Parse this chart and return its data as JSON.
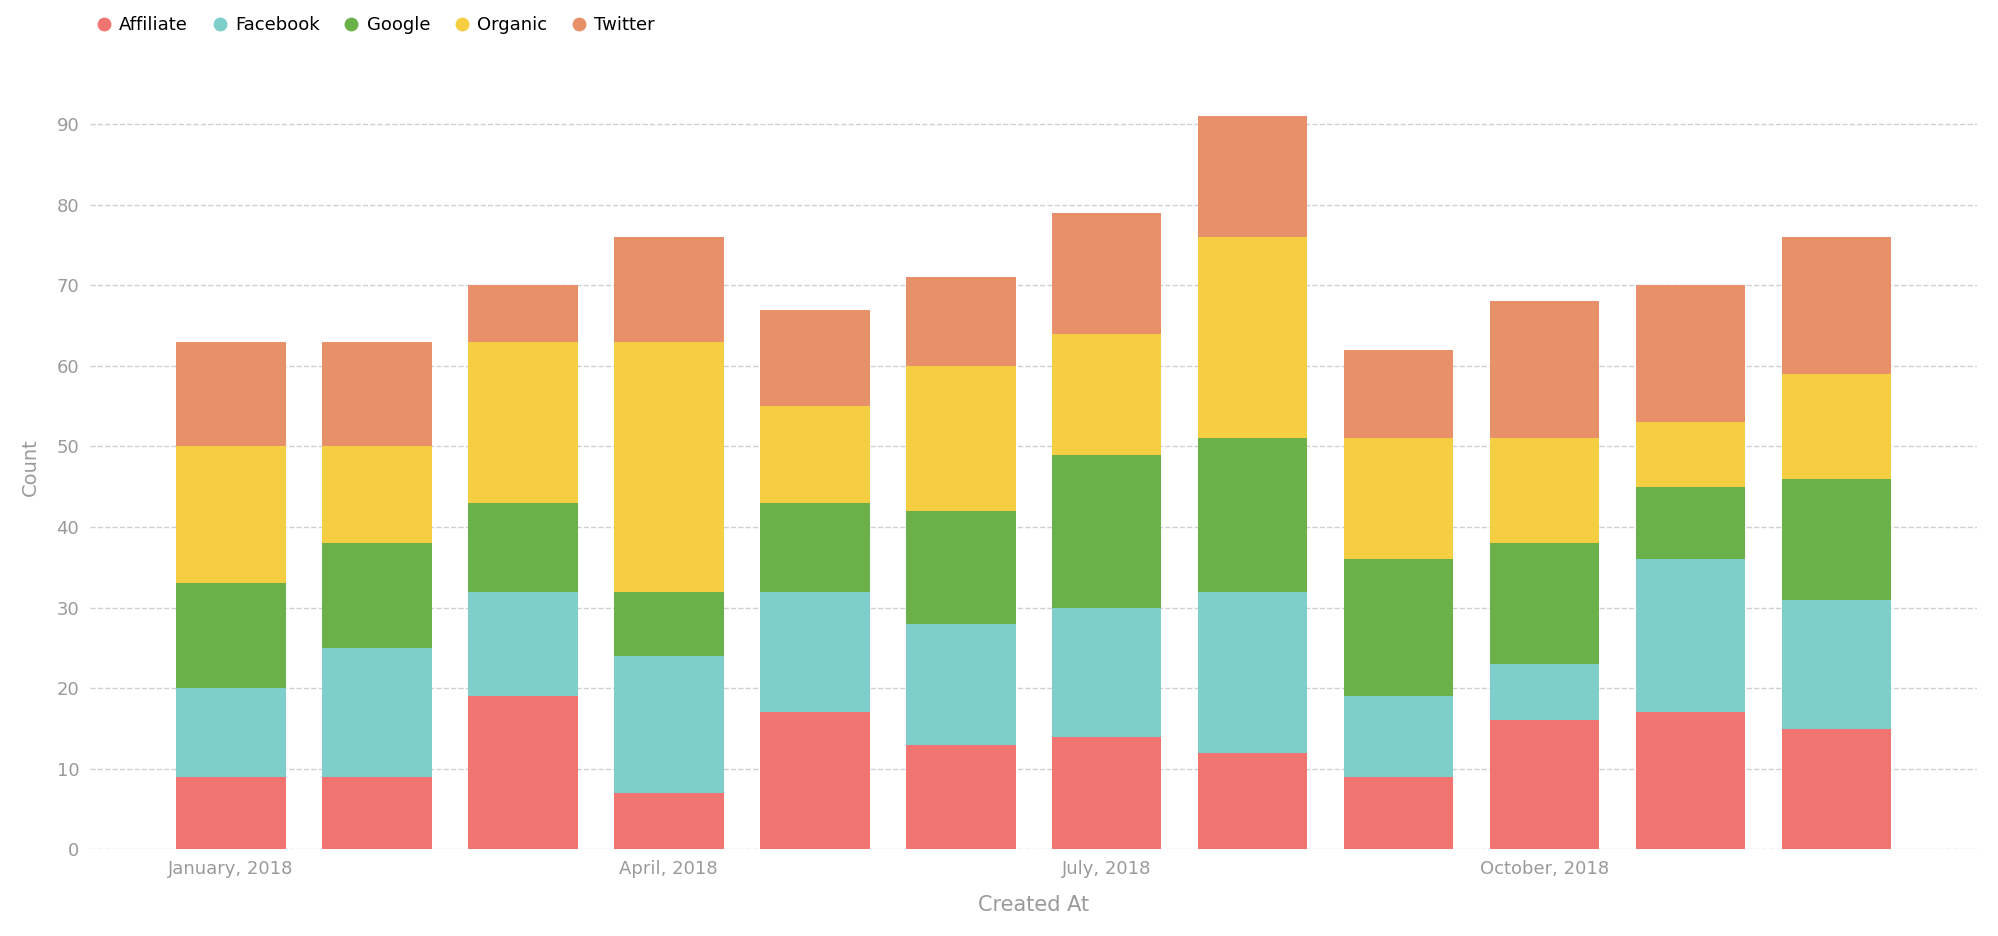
{
  "x_tick_labels": [
    "January, 2018",
    "",
    "",
    "April, 2018",
    "",
    "",
    "July, 2018",
    "",
    "",
    "October, 2018",
    "",
    ""
  ],
  "series": {
    "Affiliate": [
      9,
      9,
      19,
      7,
      17,
      13,
      14,
      12,
      9,
      16,
      17,
      15
    ],
    "Facebook": [
      11,
      16,
      13,
      17,
      15,
      15,
      16,
      20,
      10,
      7,
      19,
      16
    ],
    "Google": [
      13,
      13,
      11,
      8,
      11,
      14,
      19,
      19,
      17,
      15,
      9,
      15
    ],
    "Organic": [
      17,
      12,
      20,
      31,
      12,
      18,
      15,
      25,
      15,
      13,
      8,
      13
    ],
    "Twitter": [
      13,
      13,
      7,
      13,
      12,
      11,
      15,
      15,
      11,
      17,
      17,
      17
    ]
  },
  "colors": {
    "Affiliate": "#F07470",
    "Facebook": "#7ECECA",
    "Google": "#6AB14A",
    "Organic": "#F5CE42",
    "Twitter": "#E8906A"
  },
  "xlabel": "Created At",
  "ylabel": "Count",
  "ylim": [
    0,
    95
  ],
  "yticks": [
    0,
    10,
    20,
    30,
    40,
    50,
    60,
    70,
    80,
    90
  ],
  "background_color": "#ffffff",
  "grid_color": "#d0d0d0",
  "bar_width": 0.75,
  "legend_order": [
    "Affiliate",
    "Facebook",
    "Google",
    "Organic",
    "Twitter"
  ],
  "tick_label_color": "#9a9a9a",
  "axis_label_color": "#9a9a9a"
}
